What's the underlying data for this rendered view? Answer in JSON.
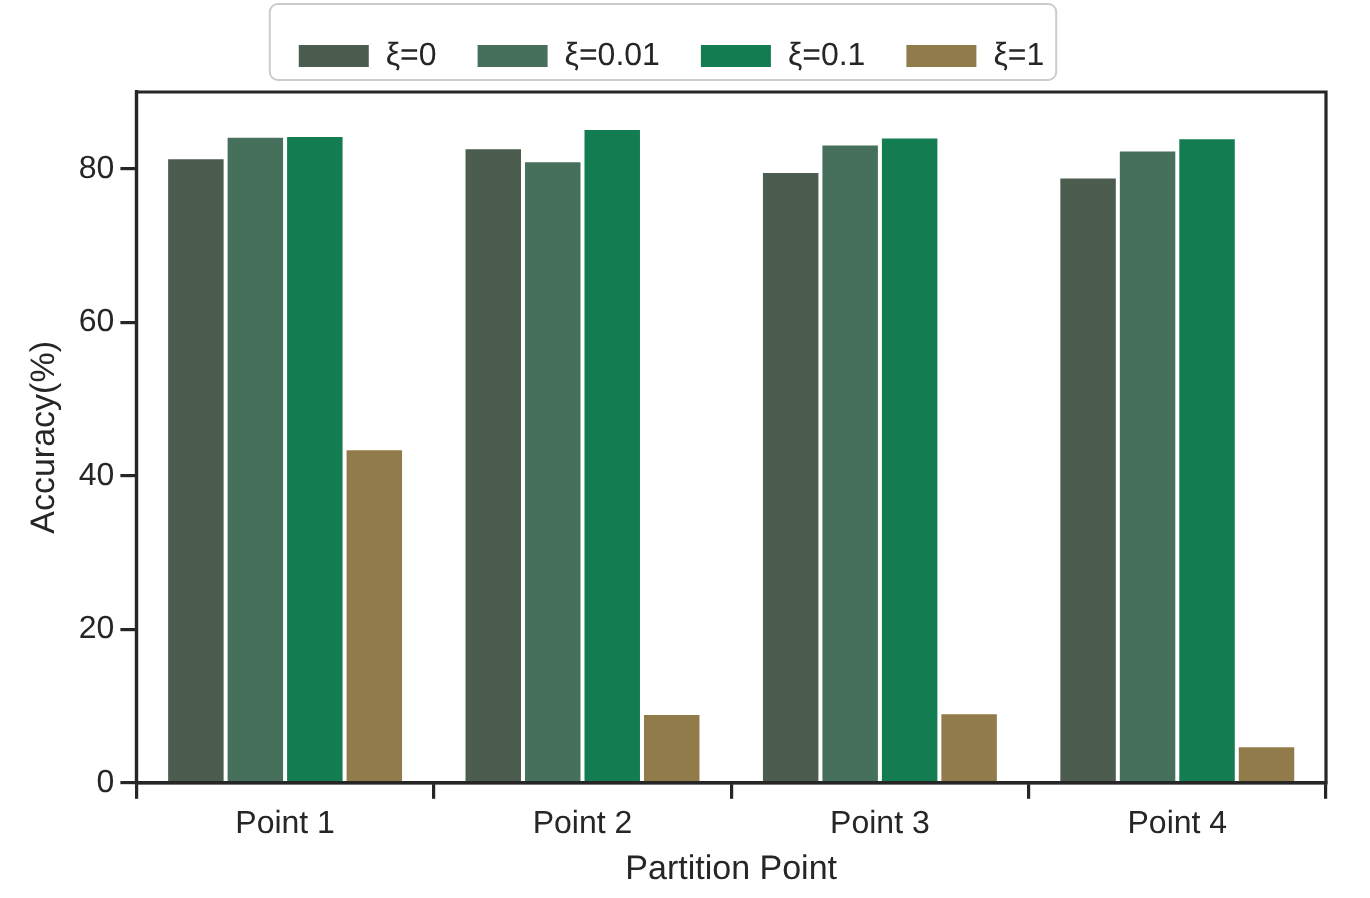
{
  "chart_data": {
    "type": "bar",
    "xlabel": "Partition Point",
    "ylabel": "Accuracy(%)",
    "categories": [
      "Point 1",
      "Point 2",
      "Point 3",
      "Point 4"
    ],
    "series": [
      {
        "name": "ξ=0",
        "color": "#4c5c4f",
        "values": [
          81.5,
          82.8,
          79.7,
          79.0
        ]
      },
      {
        "name": "ξ=0.01",
        "color": "#46705b",
        "values": [
          84.3,
          81.1,
          83.3,
          82.5
        ]
      },
      {
        "name": "ξ=0.1",
        "color": "#137d51",
        "values": [
          84.4,
          85.3,
          84.2,
          84.1
        ]
      },
      {
        "name": "ξ=1",
        "color": "#917b4a",
        "values": [
          43.6,
          9.1,
          9.2,
          4.9
        ]
      }
    ],
    "ylim": [
      0,
      90
    ],
    "yticks": [
      0,
      20,
      40,
      60,
      80
    ],
    "grid": false,
    "legend": "top"
  }
}
